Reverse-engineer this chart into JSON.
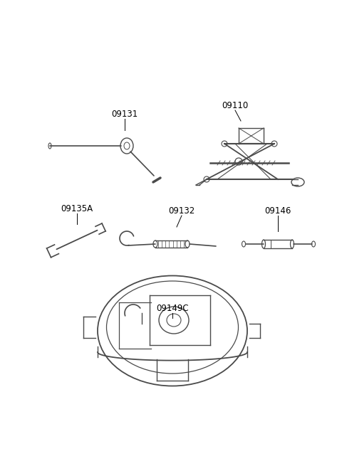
{
  "bg_color": "#ffffff",
  "line_color": "#4a4a4a",
  "label_color": "#000000",
  "font_size": 8.5
}
